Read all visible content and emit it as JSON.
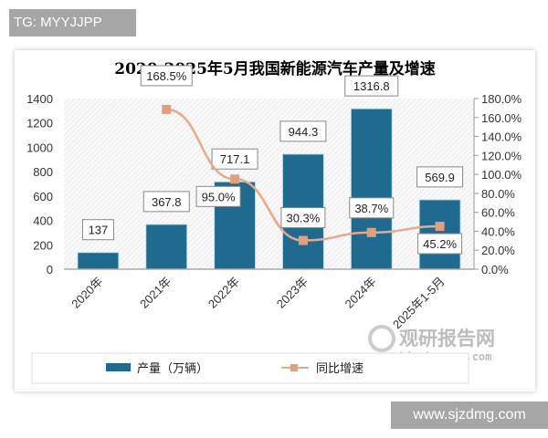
{
  "watermarks": {
    "top": "TG: MYYJJPP",
    "bottom": "www.sjzdmg.com",
    "logo_cn": "观研报告网",
    "logo_en": "chinabaogao.com"
  },
  "colors": {
    "bar": "#1f6a8f",
    "line": "#e8a88a",
    "marker": "#e0a080",
    "title": "#1f4e6a"
  },
  "chart_data": {
    "type": "bar",
    "title": "2020-2025年5月我国新能源汽车产量及增速",
    "categories": [
      "2020年",
      "2021年",
      "2022年",
      "2023年",
      "2024年",
      "2025年1-5月"
    ],
    "series": [
      {
        "name": "产量（万辆）",
        "type": "bar",
        "axis": "left",
        "values": [
          137,
          367.8,
          717.1,
          944.3,
          1316.8,
          569.9
        ],
        "labels": [
          "137",
          "367.8",
          "717.1",
          "944.3",
          "1316.8",
          "569.9"
        ]
      },
      {
        "name": "同比增速",
        "type": "line",
        "axis": "right",
        "values": [
          null,
          168.5,
          95.0,
          30.3,
          38.7,
          45.2
        ],
        "labels": [
          "",
          "168.5%",
          "95.0%",
          "30.3%",
          "38.7%",
          "45.2%"
        ]
      }
    ],
    "y_left": {
      "ylim": [
        0,
        1400
      ],
      "ticks": [
        "0",
        "200",
        "400",
        "600",
        "800",
        "1000",
        "1200",
        "1400"
      ]
    },
    "y_right": {
      "ylim": [
        0,
        180
      ],
      "ticks": [
        "0.0%",
        "20.0%",
        "40.0%",
        "60.0%",
        "80.0%",
        "100.0%",
        "120.0%",
        "140.0%",
        "160.0%",
        "180.0%"
      ]
    },
    "legend": {
      "position": "bottom",
      "items": [
        "产量（万辆）",
        "同比增速"
      ]
    },
    "grid": false
  }
}
